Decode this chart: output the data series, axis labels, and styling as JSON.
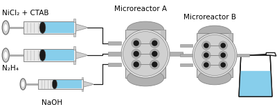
{
  "bg_color": "#ffffff",
  "labels": {
    "nicl2": "NiCl₂ + CTAB",
    "n2h4": "N₂H₄",
    "naoh": "NaOH",
    "reactor_a": "Microreactor A",
    "reactor_b": "Microreactor B"
  },
  "colors": {
    "gray_lightest": "#e8e8e8",
    "gray_light": "#d0d0d0",
    "gray_mid": "#b0b0b0",
    "gray_dark": "#888888",
    "gray_darker": "#606060",
    "black": "#1a1a1a",
    "liquid_blue": "#87ceeb",
    "liquid_blue2": "#a8ddf0",
    "white": "#ffffff",
    "line_color": "#1a1a1a"
  }
}
